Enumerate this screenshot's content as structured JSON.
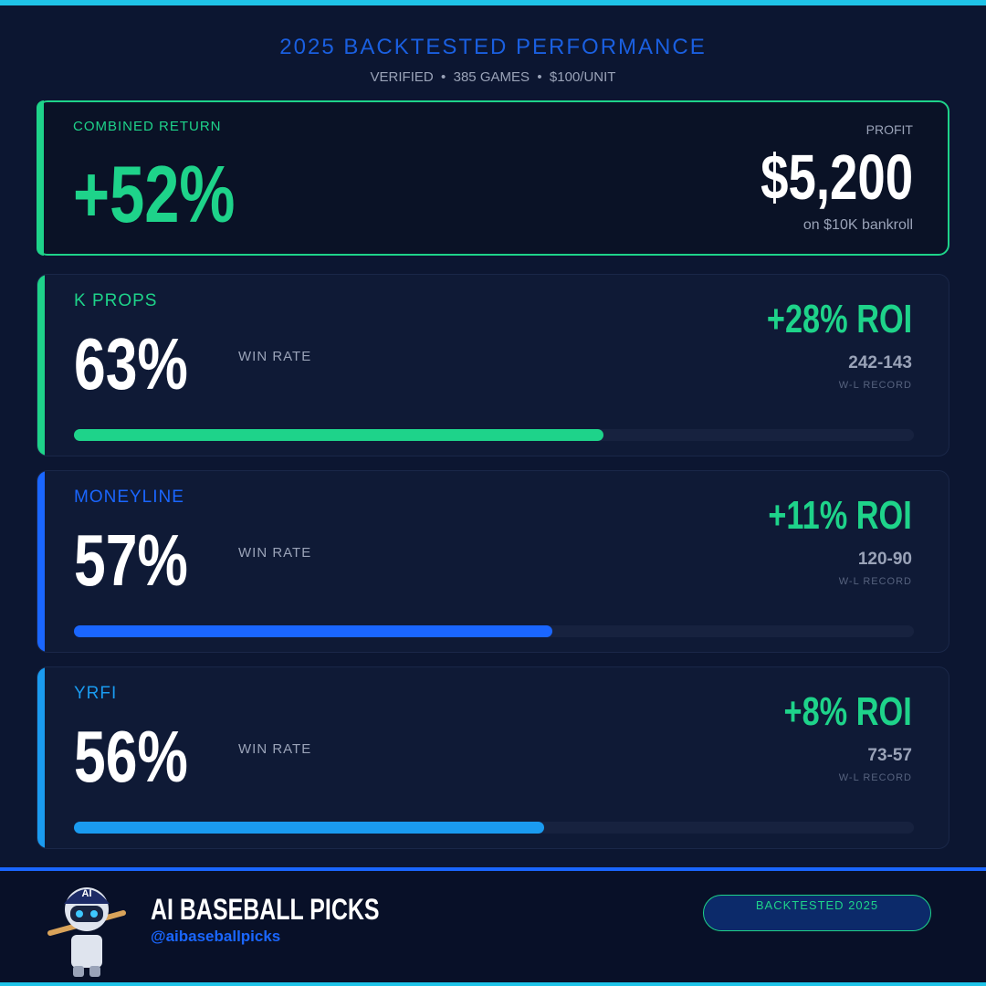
{
  "header": {
    "title": "2025 BACKTESTED PERFORMANCE",
    "subtitle": [
      "VERIFIED",
      "385 GAMES",
      "$100/UNIT"
    ]
  },
  "combined": {
    "label": "COMBINED RETURN",
    "value": "+52%",
    "profit_label": "PROFIT",
    "profit": "$5,200",
    "profit_note": "on $10K bankroll"
  },
  "progress_xlim": [
    0,
    100
  ],
  "markets": [
    {
      "name": "K PROPS",
      "win_rate": {
        "value": 63,
        "label": "63%"
      },
      "win_rate_label": "WIN RATE",
      "roi": "+28% ROI",
      "record": "242-143",
      "record_label": "W-L RECORD",
      "color": "#1ed38a"
    },
    {
      "name": "MONEYLINE",
      "win_rate": {
        "value": 57,
        "label": "57%"
      },
      "win_rate_label": "WIN RATE",
      "roi": "+11% ROI",
      "record": "120-90",
      "record_label": "W-L RECORD",
      "color": "#1a66ff"
    },
    {
      "name": "YRFI",
      "win_rate": {
        "value": 56,
        "label": "56%"
      },
      "win_rate_label": "WIN RATE",
      "roi": "+8% ROI",
      "record": "73-57",
      "record_label": "W-L RECORD",
      "color": "#1a9bf0"
    }
  ],
  "footer": {
    "brand": "AI BASEBALL PICKS",
    "handle": "@aibaseballpicks",
    "badge": "BACKTESTED 2025",
    "robot_cap": "AI"
  }
}
